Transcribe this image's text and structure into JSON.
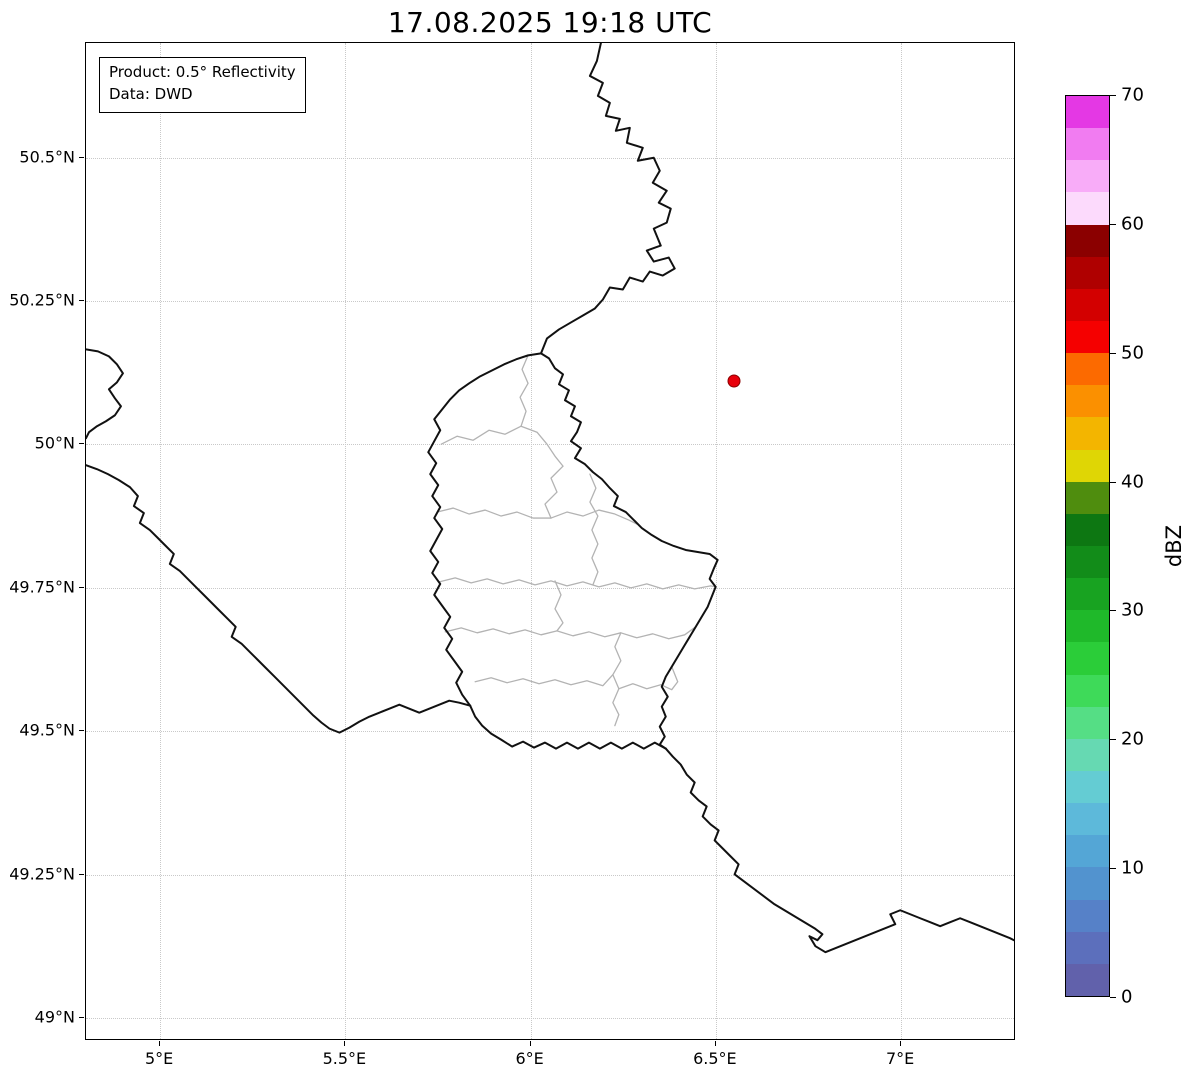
{
  "title": "17.08.2025 19:18 UTC",
  "info_box": {
    "lines": [
      "Product: 0.5° Reflectivity",
      "Data: DWD"
    ]
  },
  "axes": {
    "x_ticks": [
      {
        "value": 5.0,
        "label": "5°E"
      },
      {
        "value": 5.5,
        "label": "5.5°E"
      },
      {
        "value": 6.0,
        "label": "6°E"
      },
      {
        "value": 6.5,
        "label": "6.5°E"
      },
      {
        "value": 7.0,
        "label": "7°E"
      }
    ],
    "y_ticks": [
      {
        "value": 50.5,
        "label": "50.5°N"
      },
      {
        "value": 50.25,
        "label": "50.25°N"
      },
      {
        "value": 50.0,
        "label": "50°N"
      },
      {
        "value": 49.75,
        "label": "49.75°N"
      },
      {
        "value": 49.5,
        "label": "49.5°N"
      },
      {
        "value": 49.25,
        "label": "49.25°N"
      },
      {
        "value": 49.0,
        "label": "49°N"
      }
    ]
  },
  "map": {
    "extent": {
      "lon_min": 4.8,
      "lon_max": 7.31,
      "lat_min": 48.96,
      "lat_max": 50.7
    },
    "grid_color": "#c9c9c9",
    "country_border_color": "#111111",
    "district_border_color": "#b3b3b3",
    "radar_site": {
      "lon": 6.55,
      "lat": 50.11,
      "color": "#e8000b",
      "edge_color": "#8b0000"
    }
  },
  "colorbar": {
    "label": "dBZ",
    "min": 0,
    "max": 70,
    "ticks": [
      0,
      10,
      20,
      30,
      40,
      50,
      60,
      70
    ],
    "segments": [
      {
        "from": 0,
        "to": 2.5,
        "color": "#6161ab"
      },
      {
        "from": 2.5,
        "to": 5,
        "color": "#5c6fbc"
      },
      {
        "from": 5,
        "to": 7.5,
        "color": "#5681c8"
      },
      {
        "from": 7.5,
        "to": 10,
        "color": "#5293cf"
      },
      {
        "from": 10,
        "to": 12.5,
        "color": "#54a6d6"
      },
      {
        "from": 12.5,
        "to": 15,
        "color": "#5db9da"
      },
      {
        "from": 15,
        "to": 17.5,
        "color": "#64ccd3"
      },
      {
        "from": 17.5,
        "to": 20,
        "color": "#66d9b2"
      },
      {
        "from": 20,
        "to": 22.5,
        "color": "#55de85"
      },
      {
        "from": 22.5,
        "to": 25,
        "color": "#3eda59"
      },
      {
        "from": 25,
        "to": 27.5,
        "color": "#2bcd39"
      },
      {
        "from": 27.5,
        "to": 30,
        "color": "#1fb92a"
      },
      {
        "from": 30,
        "to": 32.5,
        "color": "#18a321"
      },
      {
        "from": 32.5,
        "to": 35,
        "color": "#128c19"
      },
      {
        "from": 35,
        "to": 37.5,
        "color": "#0d7712"
      },
      {
        "from": 37.5,
        "to": 40,
        "color": "#4f8d0e"
      },
      {
        "from": 40,
        "to": 42.5,
        "color": "#dfd605"
      },
      {
        "from": 42.5,
        "to": 45,
        "color": "#f3b500"
      },
      {
        "from": 45,
        "to": 47.5,
        "color": "#fb9000"
      },
      {
        "from": 47.5,
        "to": 50,
        "color": "#fc6a00"
      },
      {
        "from": 50,
        "to": 52.5,
        "color": "#f50000"
      },
      {
        "from": 52.5,
        "to": 55,
        "color": "#d30000"
      },
      {
        "from": 55,
        "to": 57.5,
        "color": "#af0000"
      },
      {
        "from": 57.5,
        "to": 60,
        "color": "#8b0000"
      },
      {
        "from": 60,
        "to": 62.5,
        "color": "#fcdafc"
      },
      {
        "from": 62.5,
        "to": 65,
        "color": "#f8acf8"
      },
      {
        "from": 65,
        "to": 67.5,
        "color": "#f17cf1"
      },
      {
        "from": 67.5,
        "to": 70,
        "color": "#e438e4"
      }
    ]
  },
  "chart_data": {
    "type": "map",
    "title": "17.08.2025 19:18 UTC",
    "product": "0.5° Reflectivity",
    "source": "DWD",
    "extent": {
      "lon": [
        4.8,
        7.31
      ],
      "lat": [
        48.96,
        50.7
      ]
    },
    "colorbar": {
      "label": "dBZ",
      "range": [
        0,
        70
      ],
      "ticks": [
        0,
        10,
        20,
        30,
        40,
        50,
        60,
        70
      ]
    },
    "markers": [
      {
        "lon": 6.55,
        "lat": 50.11,
        "color": "red",
        "shape": "circle"
      }
    ],
    "echoes": [],
    "notes": "Map of Luxembourg region with national borders (black), Luxembourg canton borders (gray); no reflectivity echoes visible"
  }
}
